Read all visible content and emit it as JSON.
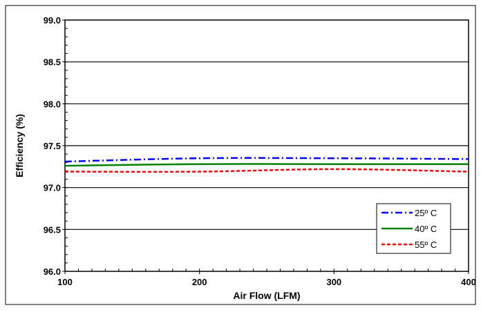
{
  "chart_data": {
    "type": "line",
    "xlabel": "Air Flow (LFM)",
    "ylabel": "Efficiency (%)",
    "xlim": [
      100,
      400
    ],
    "ylim": [
      96.0,
      99.0
    ],
    "x_ticks": [
      100,
      200,
      300,
      400
    ],
    "x_tick_labels": [
      "100",
      "200",
      "300",
      "400"
    ],
    "y_ticks": [
      96.0,
      96.5,
      97.0,
      97.5,
      98.0,
      98.5,
      99.0
    ],
    "y_tick_labels": [
      "96.0",
      "96.5",
      "97.0",
      "97.5",
      "98.0",
      "98.5",
      "99.0"
    ],
    "grid": "horizontal",
    "legend_position": "bottom-right",
    "series": [
      {
        "name": "25º C",
        "color": "#0000ff",
        "dash": "dash-dot",
        "x": [
          100,
          200,
          300,
          400
        ],
        "values": [
          97.31,
          97.35,
          97.35,
          97.34
        ]
      },
      {
        "name": "40º C",
        "color": "#008000",
        "dash": "solid",
        "x": [
          100,
          200,
          300,
          400
        ],
        "values": [
          97.26,
          97.28,
          97.28,
          97.28
        ]
      },
      {
        "name": "55º C",
        "color": "#ff0000",
        "dash": "dashed",
        "x": [
          100,
          200,
          300,
          400
        ],
        "values": [
          97.19,
          97.19,
          97.22,
          97.19
        ]
      }
    ]
  }
}
